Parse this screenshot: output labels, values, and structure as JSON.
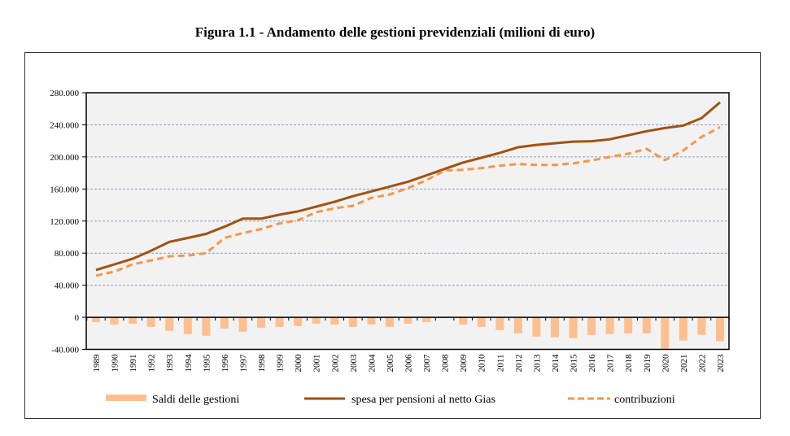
{
  "chart_data": {
    "type": "bar+line",
    "title": "Figura 1.1 - Andamento delle gestioni previdenziali (milioni di euro)",
    "xlabel": "",
    "ylabel": "",
    "ylim": [
      -40000,
      280000
    ],
    "yticks": [
      -40000,
      0,
      40000,
      80000,
      120000,
      160000,
      200000,
      240000,
      280000
    ],
    "ytick_labels": [
      "-40.000",
      "0",
      "40.000",
      "80.000",
      "120.000",
      "160.000",
      "200.000",
      "240.000",
      "280.000"
    ],
    "grid": "horizontal dashed",
    "legend_position": "bottom",
    "categories": [
      "1989",
      "1990",
      "1991",
      "1992",
      "1993",
      "1994",
      "1995",
      "1996",
      "1997",
      "1998",
      "1999",
      "2000",
      "2001",
      "2002",
      "2003",
      "2004",
      "2005",
      "2006",
      "2007",
      "2008",
      "2009",
      "2010",
      "2011",
      "2012",
      "2013",
      "2014",
      "2015",
      "2016",
      "2017",
      "2018",
      "2019",
      "2020",
      "2021",
      "2022",
      "2023"
    ],
    "series": [
      {
        "name": "Saldi delle gestioni",
        "kind": "bar",
        "color": "#FDBF8F",
        "values": [
          -6000,
          -9000,
          -8000,
          -12000,
          -17000,
          -21000,
          -23000,
          -14000,
          -18000,
          -13000,
          -12000,
          -11000,
          -8000,
          -9000,
          -12000,
          -9000,
          -12000,
          -8000,
          -6000,
          -1000,
          -9000,
          -12000,
          -16000,
          -20000,
          -24000,
          -25000,
          -26000,
          -22000,
          -21000,
          -20000,
          -20000,
          -39000,
          -29000,
          -22000,
          -30000
        ]
      },
      {
        "name": "spesa per pensioni al netto Gias",
        "kind": "line",
        "style": "solid",
        "color": "#A0520F",
        "values": [
          59000,
          66000,
          73000,
          83000,
          94000,
          99000,
          104000,
          113000,
          123000,
          123000,
          128000,
          132000,
          138000,
          144000,
          151000,
          157000,
          163000,
          169000,
          177000,
          185000,
          193000,
          199000,
          205000,
          212000,
          215000,
          217000,
          219000,
          219500,
          222000,
          227000,
          232000,
          236000,
          239000,
          248500,
          268000
        ]
      },
      {
        "name": "contribuzioni",
        "kind": "line",
        "style": "dashed",
        "color": "#F79646",
        "values": [
          52000,
          57000,
          66000,
          71000,
          76000,
          77000,
          80000,
          99000,
          105000,
          110000,
          117000,
          121000,
          131000,
          136000,
          139000,
          149000,
          153000,
          161000,
          171000,
          183000,
          184000,
          186000,
          189000,
          191000,
          190000,
          190000,
          192000,
          195500,
          200000,
          204000,
          210000,
          196000,
          208000,
          225000,
          237000
        ]
      }
    ]
  },
  "colors": {
    "plot_background": "#F2F2F2",
    "gridline": "#8E9BBF",
    "axis": "#000000"
  }
}
